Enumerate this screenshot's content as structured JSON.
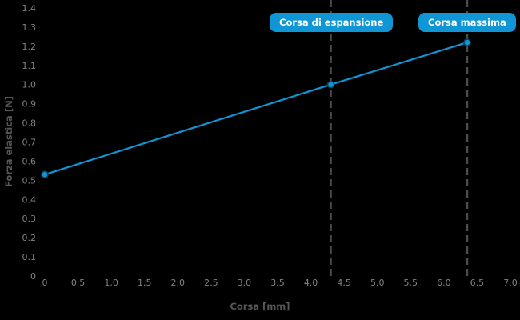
{
  "colors": {
    "background": "#000000",
    "line": "#1095d5",
    "marker_fill": "#1095d5",
    "marker_edge": "#0b4362",
    "tick_label": "#828282",
    "axis_title": "#565656",
    "dashed_line": "#4d4d4d",
    "annotation_bg": "#1095d5",
    "annotation_text": "#ffffff"
  },
  "chart_data": {
    "type": "line",
    "title": "",
    "xlabel": "Corsa [mm]",
    "ylabel": "Forza elastica [N]",
    "xlim": [
      0,
      7.0
    ],
    "ylim": [
      0,
      1.4
    ],
    "grid": false,
    "legend": "none",
    "xticks": {
      "values": [
        0,
        0.5,
        1.0,
        1.5,
        2.0,
        2.5,
        3.0,
        3.5,
        4.0,
        4.5,
        5.0,
        5.5,
        6.0,
        6.5,
        7.0
      ],
      "labels": [
        "0",
        "0.5",
        "1.0",
        "1.5",
        "2.0",
        "2.5",
        "3.0",
        "3.5",
        "4.0",
        "4.5",
        "5.0",
        "5.5",
        "6.0",
        "6.5",
        "7.0"
      ]
    },
    "yticks": {
      "values": [
        0,
        0.1,
        0.2,
        0.3,
        0.4,
        0.5,
        0.6,
        0.7,
        0.8,
        0.9,
        1.0,
        1.1,
        1.2,
        1.3,
        1.4
      ],
      "labels": [
        "0",
        "0.1",
        "0.2",
        "0.3",
        "0.4",
        "0.5",
        "0.6",
        "0.7",
        "0.8",
        "0.9",
        "1.0",
        "1.1",
        "1.2",
        "1.3",
        "1.4"
      ]
    },
    "series": [
      {
        "name": "Forza elastica",
        "marker": "circle",
        "x": [
          0,
          4.3,
          6.35
        ],
        "y": [
          0.53,
          1.0,
          1.22
        ]
      }
    ],
    "annotations": [
      {
        "label": "Corsa di espansione",
        "x": 4.3,
        "style": "dashed-vline-badge"
      },
      {
        "label": "Corsa massima",
        "x": 6.35,
        "style": "dashed-vline-badge"
      }
    ]
  }
}
